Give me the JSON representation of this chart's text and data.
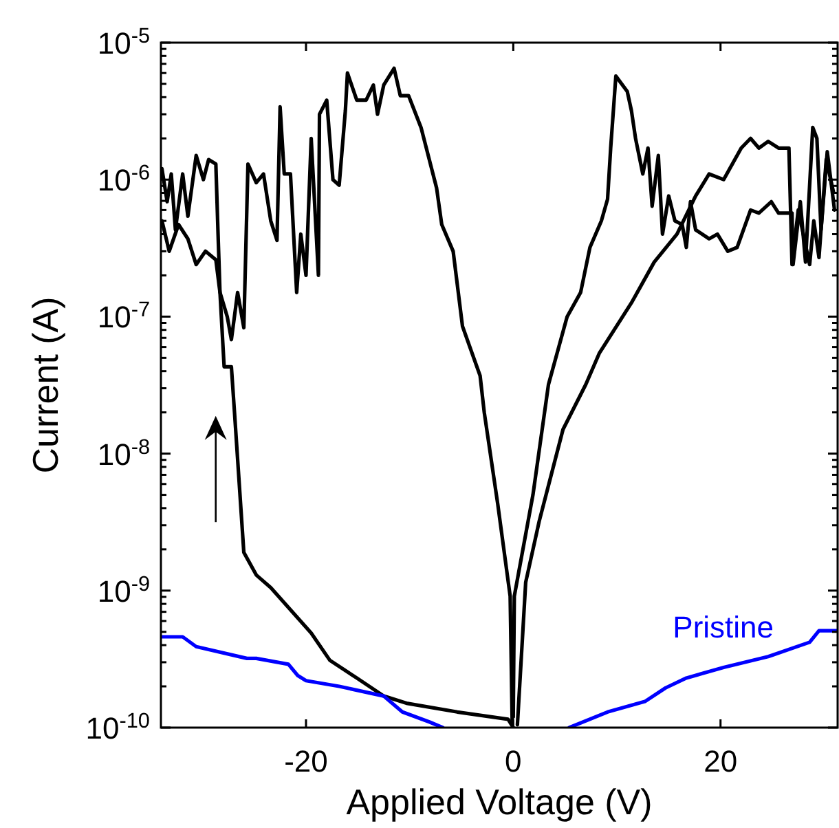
{
  "chart_data": {
    "type": "line",
    "xlabel": "Applied Voltage (V)",
    "ylabel": "Current (A)",
    "xlim": [
      -34,
      31.3
    ],
    "ylim": [
      1e-10,
      1e-05
    ],
    "log": "y",
    "grid": false,
    "line_style": "solid",
    "marker": "none",
    "xticks": [
      -20,
      0,
      20
    ],
    "yticks": [
      {
        "value": 1e-10,
        "label": "10$^{-10}$"
      },
      {
        "value": 2e-10,
        "label": null
      },
      {
        "value": 3e-10,
        "label": null
      },
      {
        "value": 4e-10,
        "label": null
      },
      {
        "value": 5e-10,
        "label": null
      },
      {
        "value": 6e-10,
        "label": null
      },
      {
        "value": 7e-10,
        "label": null
      },
      {
        "value": 8e-10,
        "label": null
      },
      {
        "value": 9e-10,
        "label": null
      },
      {
        "value": 1e-09,
        "label": "10$^{-9}$"
      },
      {
        "value": 2e-09,
        "label": null
      },
      {
        "value": 3e-09,
        "label": null
      },
      {
        "value": 4e-09,
        "label": null
      },
      {
        "value": 5e-09,
        "label": null
      },
      {
        "value": 6e-09,
        "label": null
      },
      {
        "value": 7e-09,
        "label": null
      },
      {
        "value": 8e-09,
        "label": null
      },
      {
        "value": 9e-09,
        "label": null
      },
      {
        "value": 1e-08,
        "label": "10$^{-8}$"
      },
      {
        "value": 2e-08,
        "label": null
      },
      {
        "value": 3e-08,
        "label": null
      },
      {
        "value": 4e-08,
        "label": null
      },
      {
        "value": 5e-08,
        "label": null
      },
      {
        "value": 6e-08,
        "label": null
      },
      {
        "value": 7e-08,
        "label": null
      },
      {
        "value": 8e-08,
        "label": null
      },
      {
        "value": 9e-08,
        "label": null
      },
      {
        "value": 1e-07,
        "label": "10$^{-7}$"
      },
      {
        "value": 2e-07,
        "label": null
      },
      {
        "value": 3e-07,
        "label": null
      },
      {
        "value": 4e-07,
        "label": null
      },
      {
        "value": 5e-07,
        "label": null
      },
      {
        "value": 6e-07,
        "label": null
      },
      {
        "value": 7e-07,
        "label": null
      },
      {
        "value": 8e-07,
        "label": null
      },
      {
        "value": 9e-07,
        "label": null
      },
      {
        "value": 1e-06,
        "label": "10$^{-6}$"
      },
      {
        "value": 2e-06,
        "label": null
      },
      {
        "value": 3e-06,
        "label": null
      },
      {
        "value": 4e-06,
        "label": null
      },
      {
        "value": 5e-06,
        "label": null
      },
      {
        "value": 6e-06,
        "label": null
      },
      {
        "value": 7e-06,
        "label": null
      },
      {
        "value": 8e-06,
        "label": null
      },
      {
        "value": 9e-06,
        "label": null
      },
      {
        "value": 1e-05,
        "label": "10$^{-5}$"
      }
    ],
    "series": [
      {
        "color": "#000000",
        "x": [
          -33.9,
          -33.2,
          -32.3,
          -31.4,
          -30.6,
          -29.7,
          -28.7,
          -28.3,
          -27.6,
          -27.2,
          -26.6,
          -26.0,
          -25.6,
          -24.8,
          -24.1,
          -23.4,
          -22.8,
          -22.5,
          -22.1,
          -21.5,
          -20.9,
          -20.5,
          -20.0,
          -19.5,
          -18.8,
          -18.7,
          -18.0,
          -17.4,
          -16.8,
          -16.2,
          -16.0,
          -15.1,
          -14.2,
          -13.5,
          -13.1,
          -12.5,
          -11.5,
          -10.9,
          -10.1,
          -8.9,
          -7.4,
          -6.9,
          -5.8,
          -4.9,
          -3.2,
          -2.8,
          -1.5,
          -0.3,
          -0.1
        ],
        "values": [
          5e-07,
          3e-07,
          4.7e-07,
          3.7e-07,
          2.4e-07,
          3e-07,
          2.6e-07,
          1.5e-07,
          1e-07,
          6.8e-08,
          1.5e-07,
          8.3e-08,
          1.3e-06,
          9.5e-07,
          1.1e-06,
          5e-07,
          3.6e-07,
          3.4e-06,
          1.1e-06,
          1.1e-06,
          1.5e-07,
          4e-07,
          2e-07,
          2e-06,
          2e-07,
          3e-06,
          3.8e-06,
          1e-06,
          9.1e-07,
          3.2e-06,
          6e-06,
          3.8e-06,
          3.8e-06,
          4.9e-06,
          3e-06,
          4.9e-06,
          6.5e-06,
          4.1e-06,
          4.1e-06,
          2.4e-06,
          8.7e-07,
          4.7e-07,
          3e-07,
          8.5e-08,
          3.7e-08,
          2e-08,
          4.3e-09,
          9.1e-10,
          1.05e-10
        ]
      },
      {
        "color": "#000000",
        "x": [
          -33.9,
          -33.4,
          -33.0,
          -32.6,
          -31.9,
          -31.4,
          -30.6,
          -29.9,
          -29.4,
          -28.7,
          -28.5,
          -28.3,
          -27.9,
          -27.2,
          -26.9,
          -26.0,
          -24.8,
          -23.4,
          -19.5,
          -17.7,
          -15.1,
          -12.5,
          -10.2,
          -5.4,
          -0.5,
          0
        ],
        "values": [
          1.2e-06,
          6.9e-07,
          1.1e-06,
          4.3e-07,
          1.1e-06,
          5.4e-07,
          1.5e-06,
          1e-06,
          1.4e-06,
          1.3e-06,
          4.3e-07,
          1.5e-07,
          4.3e-08,
          4.3e-08,
          2e-08,
          1.9e-09,
          1.3e-09,
          1.05e-09,
          4.9e-10,
          3.1e-10,
          2.3e-10,
          1.7e-10,
          1.5e-10,
          1.3e-10,
          1.15e-10,
          1e-10
        ]
      },
      {
        "color": "#000000",
        "x": [
          0,
          0.1,
          1.9,
          3.4,
          5.2,
          6.5,
          7.4,
          8.5,
          9.1,
          9.4,
          9.9,
          11.0,
          11.4,
          11.8,
          12.5,
          13.0,
          13.4,
          14.0,
          14.4,
          15.0,
          15.6,
          16.3,
          16.7,
          17.1,
          17.6,
          18.9,
          19.7,
          20.7,
          21.6,
          22.9,
          23.7,
          24.9,
          25.6,
          26.9,
          27.0,
          27.7,
          28.2,
          28.9,
          29.3,
          29.7,
          30.3,
          31.0
        ],
        "values": [
          1.2e-10,
          9.1e-10,
          5e-09,
          3.2e-08,
          1e-07,
          1.5e-07,
          3.2e-07,
          5e-07,
          7.2e-07,
          1.7e-06,
          5.7e-06,
          4.4e-06,
          3.2e-06,
          2e-06,
          1.1e-06,
          1.7e-06,
          6.4e-07,
          1.5e-06,
          4e-07,
          7.6e-07,
          5e-07,
          4.7e-07,
          3.2e-07,
          6.9e-07,
          4.3e-07,
          3.7e-07,
          4e-07,
          3e-07,
          3.2e-07,
          6e-07,
          5.7e-07,
          6.9e-07,
          5.7e-07,
          5.7e-07,
          2.4e-07,
          6.9e-07,
          2.5e-07,
          2.4e-06,
          2e-06,
          4.3e-07,
          1.6e-06,
          6e-07
        ]
      },
      {
        "color": "#000000",
        "x": [
          0.4,
          1.2,
          2.5,
          4.8,
          7.0,
          8.3,
          11.4,
          13.6,
          15.8,
          17.6,
          18.9,
          20.3,
          22.0,
          22.9,
          23.7,
          24.6,
          25.6,
          26.6,
          26.9,
          27.5,
          28.6,
          29.0,
          29.5,
          30.2,
          30.9
        ],
        "values": [
          1.05e-10,
          1.15e-09,
          3.2e-09,
          1.5e-08,
          3.2e-08,
          5.4e-08,
          1.26e-07,
          2.5e-07,
          4e-07,
          7.6e-07,
          1.1e-06,
          1e-06,
          1.7e-06,
          2e-06,
          1.7e-06,
          1.9e-06,
          1.7e-06,
          1.7e-06,
          2.4e-07,
          6e-07,
          2.4e-07,
          5e-07,
          2.7e-07,
          1.4e-06,
          8.1e-07
        ]
      },
      {
        "name": "Pristine",
        "color": "#0000ff",
        "x": [
          -33.9,
          -31.9,
          -30.6,
          -25.7,
          -24.8,
          -21.7,
          -20.8,
          -20.0,
          -16.8,
          -12.5,
          -10.7,
          -8.1,
          -6.8,
          0,
          5.4,
          9.1,
          12.7,
          14.7,
          16.7,
          20.3,
          24.6,
          28.6,
          29.5,
          31.3
        ],
        "values": [
          4.6e-10,
          4.6e-10,
          3.9e-10,
          3.2e-10,
          3.2e-10,
          2.9e-10,
          2.4e-10,
          2.2e-10,
          2e-10,
          1.7e-10,
          1.3e-10,
          1.1e-10,
          1e-10,
          null,
          1e-10,
          1.3e-10,
          1.55e-10,
          1.95e-10,
          2.3e-10,
          2.75e-10,
          3.3e-10,
          4.2e-10,
          5.1e-10,
          5.1e-10
        ]
      }
    ]
  }
}
